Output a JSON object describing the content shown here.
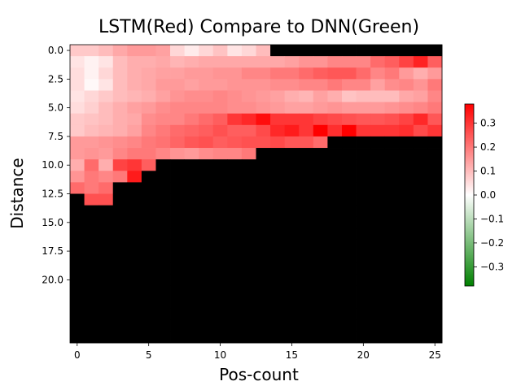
{
  "chart_data": {
    "type": "heatmap",
    "title": "LSTM(Red) Compare to DNN(Green)",
    "xlabel": "Pos-count",
    "ylabel": "Distance",
    "x_ticks": [
      "0",
      "5",
      "10",
      "20",
      "15",
      "25"
    ],
    "x_tick_values": [
      0,
      5,
      10,
      20,
      15,
      25
    ],
    "y_ticks": [
      "0.0",
      "2.5",
      "5.0",
      "7.5",
      "10.0",
      "12.5",
      "15.0",
      "17.5",
      "20.0"
    ],
    "y_tick_values": [
      0.0,
      2.5,
      5.0,
      7.5,
      10.0,
      12.5,
      15.0,
      17.5,
      20.0
    ],
    "colorbar_ticks": [
      "0.3",
      "0.2",
      "0.1",
      "0.0",
      "−0.1",
      "−0.2",
      "−0.3"
    ],
    "colorbar_tick_values": [
      0.3,
      0.2,
      0.1,
      0.0,
      -0.1,
      -0.2,
      -0.3
    ],
    "colorbar_range": [
      -0.38,
      0.38
    ],
    "colormap": [
      "#008000",
      "#ffffff",
      "#ff0000"
    ],
    "missing_color": "#000000",
    "x_range": [
      0,
      25
    ],
    "y_range": [
      0,
      20
    ],
    "values": [
      [
        0.08,
        0.08,
        0.1,
        0.13,
        0.15,
        0.15,
        0.14,
        0.06,
        0.03,
        0.06,
        0.09,
        0.04,
        0.06,
        0.1,
        null,
        null,
        null,
        null,
        null,
        null,
        null,
        null,
        null,
        null,
        null,
        null
      ],
      [
        0.04,
        0.02,
        0.04,
        0.1,
        0.12,
        0.12,
        0.13,
        0.11,
        0.12,
        0.13,
        0.13,
        0.13,
        0.13,
        0.13,
        0.13,
        0.14,
        0.16,
        0.16,
        0.18,
        0.18,
        0.18,
        0.22,
        0.24,
        0.28,
        0.33,
        0.24
      ],
      [
        0.05,
        0.02,
        0.06,
        0.1,
        0.12,
        0.13,
        0.14,
        0.14,
        0.15,
        0.15,
        0.16,
        0.16,
        0.18,
        0.18,
        0.2,
        0.2,
        0.22,
        0.24,
        0.25,
        0.25,
        0.22,
        0.18,
        0.2,
        0.15,
        0.12,
        0.15
      ],
      [
        0.05,
        0.01,
        0.04,
        0.1,
        0.12,
        0.13,
        0.15,
        0.15,
        0.14,
        0.15,
        0.15,
        0.16,
        0.16,
        0.16,
        0.17,
        0.17,
        0.18,
        0.18,
        0.2,
        0.18,
        0.18,
        0.14,
        0.17,
        0.18,
        0.16,
        0.2
      ],
      [
        0.04,
        0.06,
        0.08,
        0.1,
        0.11,
        0.12,
        0.14,
        0.16,
        0.17,
        0.17,
        0.18,
        0.17,
        0.16,
        0.15,
        0.14,
        0.12,
        0.11,
        0.14,
        0.12,
        0.09,
        0.1,
        0.1,
        0.1,
        0.13,
        0.14,
        0.18
      ],
      [
        0.05,
        0.07,
        0.1,
        0.12,
        0.14,
        0.15,
        0.17,
        0.18,
        0.18,
        0.18,
        0.18,
        0.17,
        0.17,
        0.16,
        0.15,
        0.14,
        0.14,
        0.15,
        0.16,
        0.15,
        0.15,
        0.15,
        0.16,
        0.17,
        0.18,
        0.2
      ],
      [
        0.08,
        0.09,
        0.1,
        0.12,
        0.13,
        0.17,
        0.18,
        0.18,
        0.2,
        0.22,
        0.24,
        0.3,
        0.32,
        0.36,
        0.3,
        0.3,
        0.3,
        0.28,
        0.27,
        0.26,
        0.25,
        0.25,
        0.26,
        0.28,
        0.32,
        0.25
      ],
      [
        0.08,
        0.1,
        0.11,
        0.12,
        0.14,
        0.18,
        0.2,
        0.22,
        0.23,
        0.24,
        0.26,
        0.24,
        0.24,
        0.27,
        0.32,
        0.34,
        0.3,
        0.38,
        0.31,
        0.38,
        0.3,
        0.3,
        0.3,
        0.31,
        0.27,
        0.3
      ],
      [
        0.15,
        0.15,
        0.16,
        0.17,
        0.18,
        0.2,
        0.21,
        0.23,
        0.25,
        0.26,
        0.24,
        0.25,
        0.26,
        0.26,
        0.27,
        0.25,
        0.25,
        0.22,
        null,
        null,
        null,
        null,
        null,
        null,
        null,
        null
      ],
      [
        0.15,
        0.16,
        0.15,
        0.18,
        0.2,
        0.2,
        0.18,
        0.16,
        0.15,
        0.17,
        0.18,
        0.18,
        0.2,
        null,
        null,
        null,
        null,
        null,
        null,
        null,
        null,
        null,
        null,
        null,
        null,
        null
      ],
      [
        0.12,
        0.22,
        0.12,
        0.28,
        0.3,
        0.24,
        null,
        null,
        null,
        null,
        null,
        null,
        null,
        null,
        null,
        null,
        null,
        null,
        null,
        null,
        null,
        null,
        null,
        null,
        null,
        null
      ],
      [
        0.16,
        0.2,
        0.18,
        0.2,
        0.34,
        null,
        null,
        null,
        null,
        null,
        null,
        null,
        null,
        null,
        null,
        null,
        null,
        null,
        null,
        null,
        null,
        null,
        null,
        null,
        null,
        null
      ],
      [
        0.22,
        0.2,
        0.22,
        null,
        null,
        null,
        null,
        null,
        null,
        null,
        null,
        null,
        null,
        null,
        null,
        null,
        null,
        null,
        null,
        null,
        null,
        null,
        null,
        null,
        null,
        null
      ],
      [
        null,
        0.26,
        0.26,
        null,
        null,
        null,
        null,
        null,
        null,
        null,
        null,
        null,
        null,
        null,
        null,
        null,
        null,
        null,
        null,
        null,
        null,
        null,
        null,
        null,
        null,
        null
      ],
      [
        null,
        null,
        null,
        null,
        null,
        null,
        null,
        null,
        null,
        null,
        null,
        null,
        null,
        null,
        null,
        null,
        null,
        null,
        null,
        null,
        null,
        null,
        null,
        null,
        null,
        null
      ],
      [
        null,
        null,
        null,
        null,
        null,
        null,
        null,
        null,
        null,
        null,
        null,
        null,
        null,
        null,
        null,
        null,
        null,
        null,
        null,
        null,
        null,
        null,
        null,
        null,
        null,
        null
      ],
      [
        null,
        null,
        null,
        null,
        null,
        null,
        null,
        null,
        null,
        null,
        null,
        null,
        null,
        null,
        null,
        null,
        null,
        null,
        null,
        null,
        null,
        null,
        null,
        null,
        null,
        null
      ],
      [
        null,
        null,
        null,
        null,
        null,
        null,
        null,
        null,
        null,
        null,
        null,
        null,
        null,
        null,
        null,
        null,
        null,
        null,
        null,
        null,
        null,
        null,
        null,
        null,
        null,
        null
      ],
      [
        null,
        null,
        null,
        null,
        null,
        null,
        null,
        null,
        null,
        null,
        null,
        null,
        null,
        null,
        null,
        null,
        null,
        null,
        null,
        null,
        null,
        null,
        null,
        null,
        null,
        null
      ],
      [
        null,
        null,
        null,
        null,
        null,
        null,
        null,
        null,
        null,
        null,
        null,
        null,
        null,
        null,
        null,
        null,
        null,
        null,
        null,
        null,
        null,
        null,
        null,
        null,
        null,
        null
      ],
      [
        null,
        null,
        null,
        null,
        null,
        null,
        null,
        null,
        null,
        null,
        null,
        null,
        null,
        null,
        null,
        null,
        null,
        null,
        null,
        null,
        null,
        null,
        null,
        null,
        null,
        null
      ],
      [
        null,
        null,
        null,
        null,
        null,
        null,
        null,
        null,
        null,
        null,
        null,
        null,
        null,
        null,
        null,
        null,
        null,
        null,
        null,
        null,
        null,
        null,
        null,
        null,
        null,
        null
      ],
      [
        null,
        null,
        null,
        null,
        null,
        null,
        null,
        null,
        null,
        null,
        null,
        null,
        null,
        null,
        null,
        null,
        null,
        null,
        null,
        null,
        null,
        null,
        null,
        null,
        null,
        null
      ],
      [
        null,
        null,
        null,
        null,
        null,
        null,
        null,
        null,
        null,
        null,
        null,
        null,
        null,
        null,
        null,
        null,
        null,
        null,
        null,
        null,
        null,
        null,
        null,
        null,
        null,
        null
      ],
      [
        null,
        null,
        null,
        null,
        null,
        null,
        null,
        null,
        null,
        null,
        null,
        null,
        null,
        null,
        null,
        null,
        null,
        null,
        null,
        null,
        null,
        null,
        null,
        null,
        null,
        null
      ],
      [
        null,
        null,
        null,
        null,
        null,
        null,
        null,
        null,
        null,
        null,
        null,
        null,
        null,
        null,
        null,
        null,
        null,
        null,
        null,
        null,
        null,
        null,
        null,
        null,
        null,
        null
      ]
    ]
  }
}
